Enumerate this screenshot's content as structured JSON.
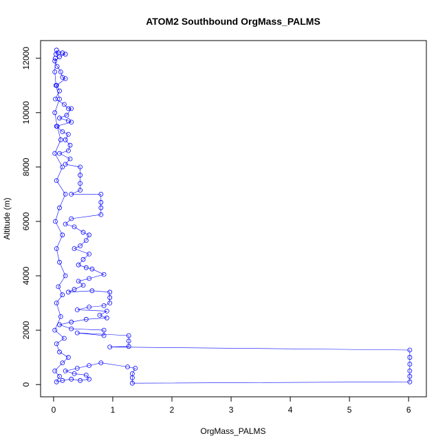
{
  "chart_data": {
    "type": "scatter",
    "title": "ATOM2 Southbound OrgMass_PALMS",
    "xlabel": "OrgMass_PALMS",
    "ylabel": "Altitude (m)",
    "xlim": [
      -0.22,
      6.3
    ],
    "ylim": [
      -450,
      12650
    ],
    "x_ticks": [
      0,
      1,
      2,
      3,
      4,
      5,
      6
    ],
    "y_ticks": [
      0,
      2000,
      4000,
      6000,
      8000,
      10000,
      12000
    ],
    "grid": false,
    "legend": "none",
    "color": "#0000ff",
    "series": [
      {
        "style": "points-connected",
        "points": [
          [
            0.05,
            12300
          ],
          [
            0.04,
            12150
          ],
          [
            0.08,
            12200
          ],
          [
            0.15,
            12200
          ],
          [
            0.2,
            12150
          ],
          [
            0.1,
            12050
          ],
          [
            0.02,
            11900
          ],
          [
            0.06,
            11700
          ],
          [
            0.12,
            11500
          ],
          [
            0.15,
            11300
          ],
          [
            0.2,
            11250
          ],
          [
            0.05,
            11000
          ],
          [
            0.1,
            10800
          ],
          [
            0.03,
            10500
          ],
          [
            0.18,
            10300
          ],
          [
            0.25,
            10150
          ],
          [
            0.3,
            10150
          ],
          [
            0.22,
            9900
          ],
          [
            0.1,
            9800
          ],
          [
            0.25,
            9700
          ],
          [
            0.3,
            9650
          ],
          [
            0.05,
            9500
          ],
          [
            0.15,
            9300
          ],
          [
            0.25,
            9200
          ],
          [
            0.2,
            9000
          ],
          [
            0.28,
            8800
          ],
          [
            0.25,
            8600
          ],
          [
            0.1,
            8500
          ],
          [
            0.28,
            8300
          ],
          [
            0.2,
            8100
          ],
          [
            0.45,
            8000
          ],
          [
            0.45,
            7700
          ],
          [
            0.45,
            7400
          ],
          [
            0.45,
            7150
          ],
          [
            0.3,
            7000
          ],
          [
            0.8,
            7000
          ],
          [
            0.8,
            6700
          ],
          [
            0.8,
            6500
          ],
          [
            0.8,
            6250
          ],
          [
            0.3,
            6100
          ],
          [
            0.2,
            5900
          ],
          [
            0.35,
            5800
          ],
          [
            0.5,
            5600
          ],
          [
            0.6,
            5500
          ],
          [
            0.55,
            5300
          ],
          [
            0.45,
            5100
          ],
          [
            0.35,
            5000
          ],
          [
            0.6,
            4800
          ],
          [
            0.5,
            4600
          ],
          [
            0.42,
            4400
          ],
          [
            0.55,
            4300
          ],
          [
            0.65,
            4250
          ],
          [
            0.85,
            4050
          ],
          [
            0.6,
            3900
          ],
          [
            0.42,
            3800
          ],
          [
            0.5,
            3650
          ],
          [
            0.35,
            3500
          ],
          [
            0.25,
            3400
          ],
          [
            0.65,
            3450
          ],
          [
            0.95,
            3400
          ],
          [
            0.95,
            3200
          ],
          [
            0.95,
            3000
          ],
          [
            0.85,
            2900
          ],
          [
            0.6,
            2850
          ],
          [
            0.4,
            2750
          ],
          [
            0.9,
            2700
          ],
          [
            0.78,
            2550
          ],
          [
            0.9,
            2450
          ],
          [
            0.55,
            2400
          ],
          [
            0.3,
            2300
          ],
          [
            0.1,
            2200
          ],
          [
            0.3,
            2050
          ],
          [
            0.85,
            2000
          ],
          [
            0.85,
            1800
          ],
          [
            0.4,
            1900
          ],
          [
            1.27,
            1800
          ],
          [
            1.27,
            1600
          ],
          [
            1.27,
            1400
          ],
          [
            0.95,
            1380
          ],
          [
            6.02,
            1270
          ],
          [
            6.02,
            1000
          ],
          [
            6.02,
            750
          ],
          [
            6.02,
            500
          ],
          [
            6.02,
            300
          ],
          [
            6.02,
            100
          ],
          [
            1.33,
            50
          ],
          [
            1.33,
            250
          ],
          [
            1.33,
            400
          ],
          [
            1.38,
            600
          ],
          [
            1.25,
            650
          ],
          [
            0.8,
            800
          ],
          [
            0.6,
            700
          ],
          [
            0.4,
            600
          ],
          [
            0.2,
            500
          ],
          [
            0.35,
            400
          ],
          [
            0.55,
            350
          ],
          [
            0.6,
            200
          ],
          [
            0.45,
            150
          ],
          [
            0.3,
            200
          ],
          [
            0.15,
            150
          ],
          [
            0.05,
            100
          ],
          [
            0.1,
            300
          ],
          [
            0.02,
            500
          ],
          [
            0.15,
            800
          ],
          [
            0.25,
            1000
          ],
          [
            0.1,
            1200
          ],
          [
            0.05,
            1500
          ],
          [
            0.18,
            1700
          ],
          [
            0.02,
            2000
          ],
          [
            0.12,
            2500
          ],
          [
            0.05,
            3000
          ],
          [
            0.15,
            3300
          ],
          [
            0.08,
            3600
          ],
          [
            0.2,
            4000
          ],
          [
            0.1,
            4500
          ],
          [
            0.05,
            5000
          ],
          [
            0.15,
            5500
          ],
          [
            0.03,
            6000
          ],
          [
            0.1,
            6500
          ],
          [
            0.2,
            7000
          ],
          [
            0.05,
            7500
          ],
          [
            0.15,
            8000
          ],
          [
            0.02,
            8500
          ],
          [
            0.12,
            9000
          ],
          [
            0.06,
            9500
          ],
          [
            0.02,
            10000
          ],
          [
            0.1,
            10500
          ],
          [
            0.04,
            11000
          ],
          [
            0.02,
            11500
          ],
          [
            0.03,
            12000
          ]
        ]
      }
    ]
  }
}
